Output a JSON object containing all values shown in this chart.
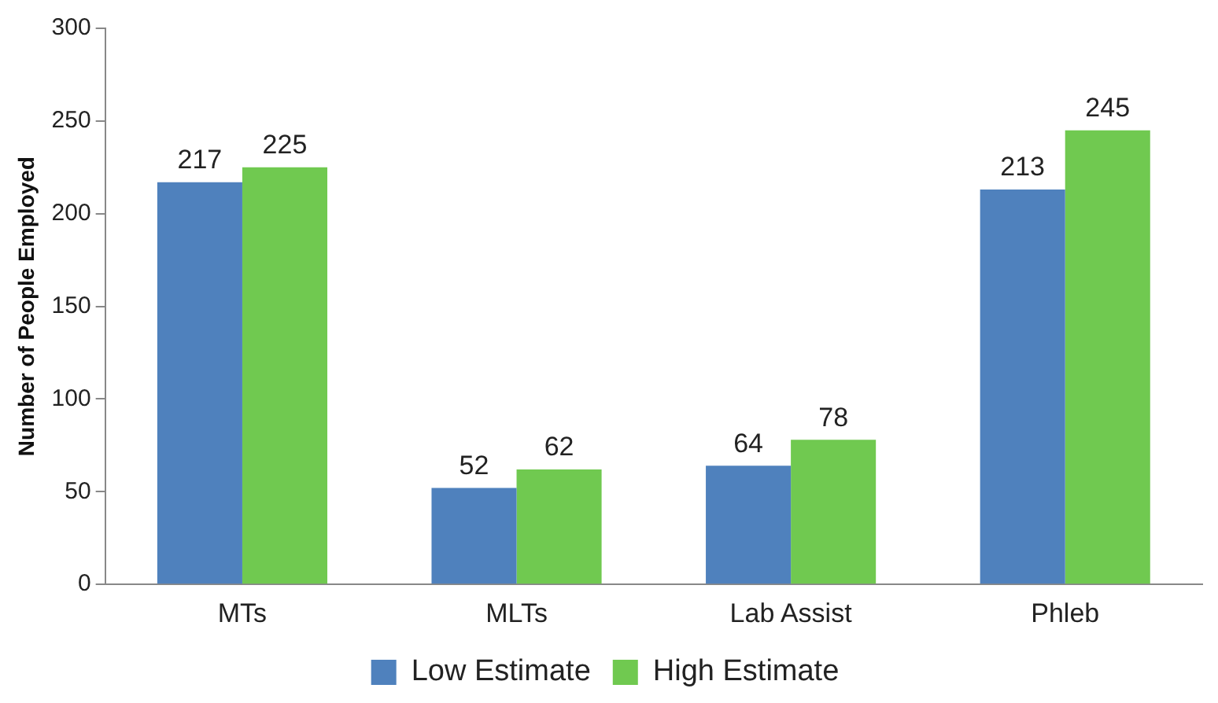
{
  "chart_data": {
    "type": "bar",
    "ylabel": "Number of People Employed",
    "categories": [
      "MTs",
      "MLTs",
      "Lab Assist",
      "Phleb"
    ],
    "series": [
      {
        "name": "Low Estimate",
        "color": "#4f81bd",
        "values": [
          217,
          52,
          64,
          213
        ]
      },
      {
        "name": "High Estimate",
        "color": "#70c950",
        "values": [
          225,
          62,
          78,
          245
        ]
      }
    ],
    "ylim": [
      0,
      300
    ],
    "yticks": [
      0,
      50,
      100,
      150,
      200,
      250,
      300
    ],
    "grid": false,
    "legend": "bottom",
    "data_labels": true
  }
}
